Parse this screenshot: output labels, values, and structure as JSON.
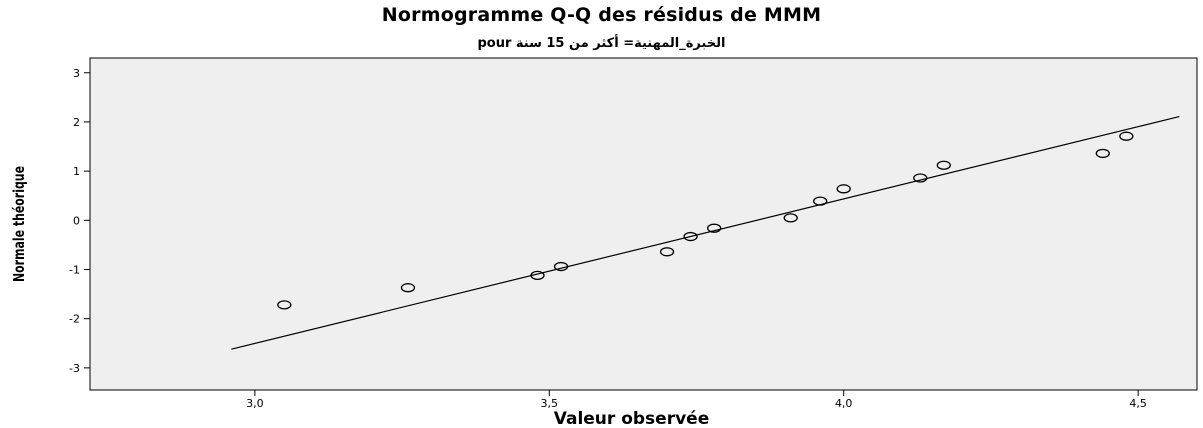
{
  "chart_data": {
    "type": "scatter",
    "title": "Normogramme Q-Q des résidus de MMM",
    "subtitle": "الخبرة_المهنية= أكثر من 15 سنة pour",
    "xlabel": "Valeur observée",
    "ylabel": "Normale théorique",
    "xlim": [
      2.72,
      4.6
    ],
    "ylim": [
      -3.45,
      3.3
    ],
    "x_ticks": [
      3.0,
      3.5,
      4.0,
      4.5
    ],
    "x_tick_labels": [
      "3,0",
      "3,5",
      "4,0",
      "4,5"
    ],
    "y_ticks": [
      3,
      2,
      1,
      0,
      -1,
      -2,
      -3
    ],
    "y_tick_labels": [
      "3",
      "2",
      "1",
      "0",
      "-1",
      "-2",
      "-3"
    ],
    "grid": false,
    "points": [
      {
        "x": 3.05,
        "y": -1.72
      },
      {
        "x": 3.26,
        "y": -1.37
      },
      {
        "x": 3.48,
        "y": -1.12
      },
      {
        "x": 3.52,
        "y": -0.94
      },
      {
        "x": 3.7,
        "y": -0.64
      },
      {
        "x": 3.74,
        "y": -0.33
      },
      {
        "x": 3.78,
        "y": -0.16
      },
      {
        "x": 3.91,
        "y": 0.05
      },
      {
        "x": 3.96,
        "y": 0.39
      },
      {
        "x": 4.0,
        "y": 0.64
      },
      {
        "x": 4.13,
        "y": 0.86
      },
      {
        "x": 4.17,
        "y": 1.12
      },
      {
        "x": 4.44,
        "y": 1.36
      },
      {
        "x": 4.48,
        "y": 1.71
      }
    ],
    "reference_line": {
      "x1": 2.96,
      "y1": -2.62,
      "x2": 4.57,
      "y2": 2.11
    },
    "colors": {
      "plot_background": "#efefef",
      "marker": "#000000",
      "line": "#000000"
    }
  }
}
